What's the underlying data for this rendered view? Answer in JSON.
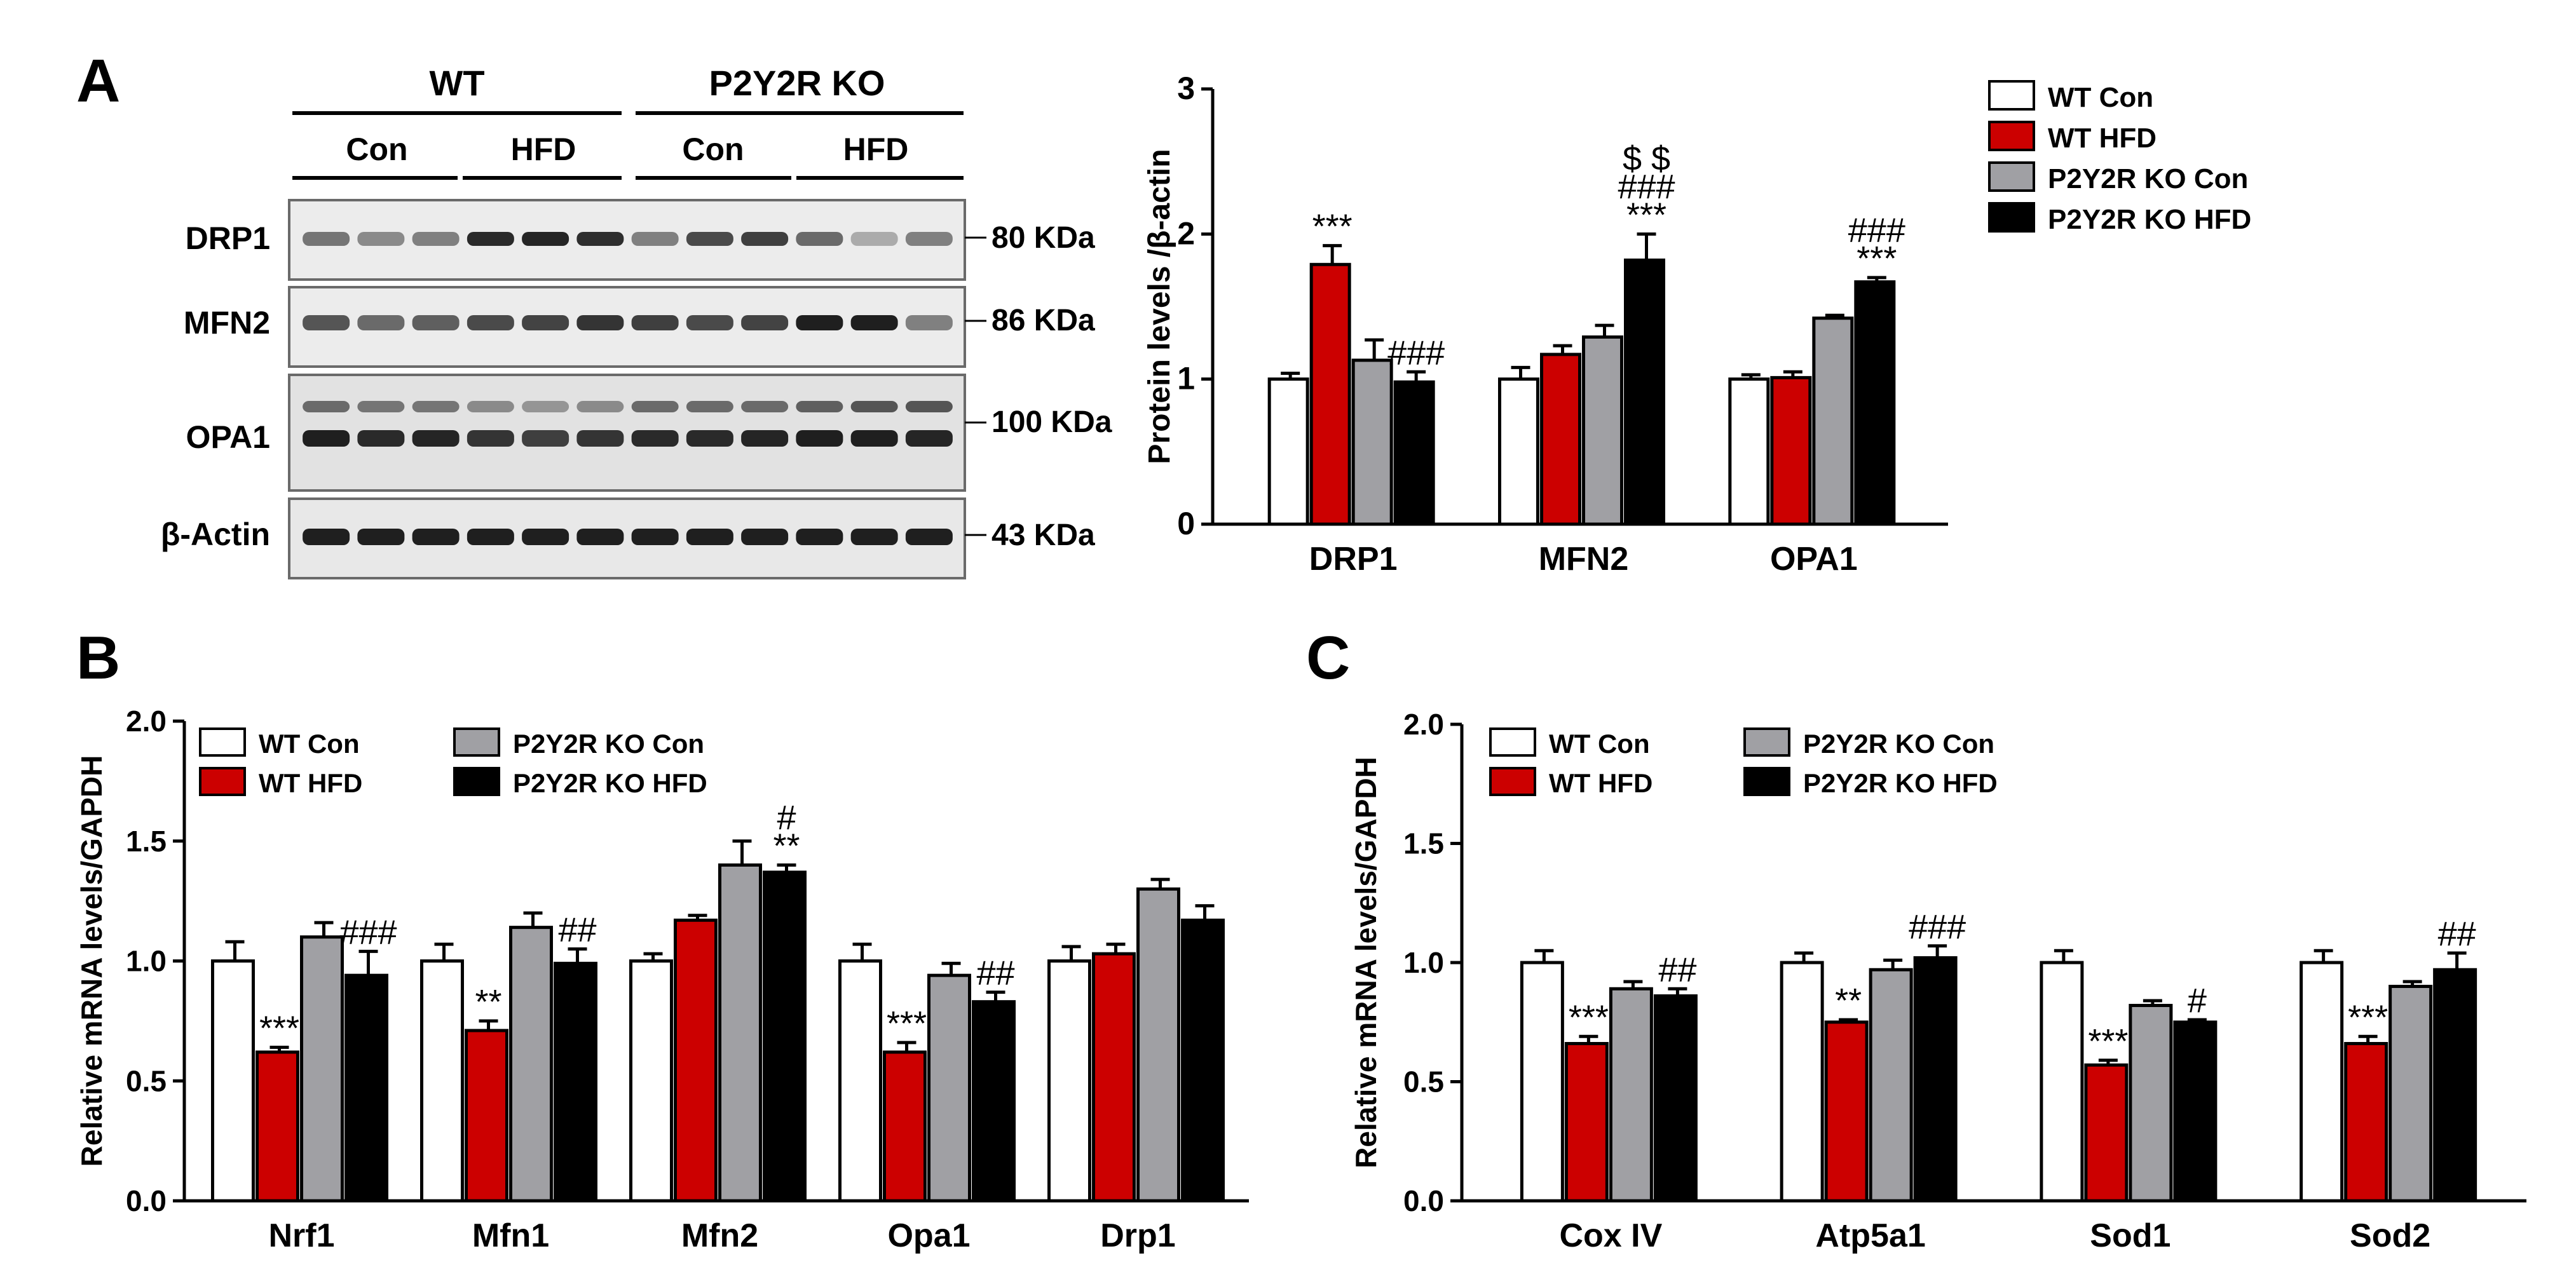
{
  "colors": {
    "wt_con": "#ffffff",
    "wt_hfd": "#cc0000",
    "ko_con": "#a0a0a4",
    "ko_hfd": "#000000",
    "axis": "#000000"
  },
  "panel_labels": {
    "a": "A",
    "b": "B",
    "c": "C"
  },
  "blot": {
    "group_labels": [
      "WT",
      "P2Y2R KO"
    ],
    "condition_labels": [
      "Con",
      "HFD",
      "Con",
      "HFD"
    ],
    "proteins": [
      {
        "name": "DRP1",
        "size": "80 KDa"
      },
      {
        "name": "MFN2",
        "size": "86 KDa"
      },
      {
        "name": "OPA1",
        "size": "100 KDa"
      },
      {
        "name": "β-Actin",
        "size": "43 KDa"
      }
    ]
  },
  "chart_data": [
    {
      "id": "A",
      "type": "bar",
      "title": "",
      "xlabel": "",
      "ylabel": "Protein levels /β-actin",
      "ylim": [
        0,
        3
      ],
      "yticks": [
        0,
        1,
        2,
        3
      ],
      "ytick_labels": [
        "0",
        "1",
        "2",
        "3"
      ],
      "categories": [
        "DRP1",
        "MFN2",
        "OPA1"
      ],
      "legend_position": "top-right",
      "legend_layout": "column",
      "series": [
        {
          "name": "WT Con",
          "values": [
            1.0,
            1.0,
            1.0
          ],
          "errors": [
            0.04,
            0.08,
            0.03
          ],
          "annotations": [
            "",
            "",
            ""
          ]
        },
        {
          "name": "WT HFD",
          "values": [
            1.79,
            1.17,
            1.01
          ],
          "errors": [
            0.13,
            0.06,
            0.04
          ],
          "annotations": [
            "***",
            "",
            ""
          ]
        },
        {
          "name": "P2Y2R KO Con",
          "values": [
            1.13,
            1.29,
            1.42
          ],
          "errors": [
            0.14,
            0.08,
            0.02
          ],
          "annotations": [
            "",
            "",
            ""
          ]
        },
        {
          "name": "P2Y2R KO HFD",
          "values": [
            0.98,
            1.82,
            1.67
          ],
          "errors": [
            0.07,
            0.18,
            0.03
          ],
          "annotations": [
            "###",
            "$ $\n###\n***",
            "###\n***"
          ]
        }
      ]
    },
    {
      "id": "B",
      "type": "bar",
      "title": "",
      "xlabel": "",
      "ylabel": "Relative mRNA levels/GAPDH",
      "ylim": [
        0,
        2.0
      ],
      "yticks": [
        0,
        0.5,
        1.0,
        1.5,
        2.0
      ],
      "ytick_labels": [
        "0.0",
        "0.5",
        "1.0",
        "1.5",
        "2.0"
      ],
      "categories": [
        "Nrf1",
        "Mfn1",
        "Mfn2",
        "Opa1",
        "Drp1"
      ],
      "legend_position": "top-left",
      "legend_layout": "two-column",
      "series": [
        {
          "name": "WT Con",
          "values": [
            1.0,
            1.0,
            1.0,
            1.0,
            1.0
          ],
          "errors": [
            0.08,
            0.07,
            0.03,
            0.07,
            0.06
          ],
          "annotations": [
            "",
            "",
            "",
            "",
            ""
          ]
        },
        {
          "name": "WT HFD",
          "values": [
            0.62,
            0.71,
            1.17,
            0.62,
            1.03
          ],
          "errors": [
            0.02,
            0.04,
            0.02,
            0.04,
            0.04
          ],
          "annotations": [
            "***",
            "**",
            "",
            "***",
            ""
          ]
        },
        {
          "name": "P2Y2R KO Con",
          "values": [
            1.1,
            1.14,
            1.4,
            0.94,
            1.3
          ],
          "errors": [
            0.06,
            0.06,
            0.1,
            0.05,
            0.04
          ],
          "annotations": [
            "",
            "",
            "",
            "",
            ""
          ]
        },
        {
          "name": "P2Y2R KO HFD",
          "values": [
            0.94,
            0.99,
            1.37,
            0.83,
            1.17
          ],
          "errors": [
            0.1,
            0.06,
            0.03,
            0.04,
            0.06
          ],
          "annotations": [
            "###",
            "##",
            "#\n**",
            "##",
            ""
          ]
        }
      ]
    },
    {
      "id": "C",
      "type": "bar",
      "title": "",
      "xlabel": "",
      "ylabel": "Relative mRNA levels/GAPDH",
      "ylim": [
        0,
        2.0
      ],
      "yticks": [
        0,
        0.5,
        1.0,
        1.5,
        2.0
      ],
      "ytick_labels": [
        "0.0",
        "0.5",
        "1.0",
        "1.5",
        "2.0"
      ],
      "categories": [
        "Cox IV",
        "Atp5a1",
        "Sod1",
        "Sod2"
      ],
      "legend_position": "top-left",
      "legend_layout": "two-column",
      "series": [
        {
          "name": "WT Con",
          "values": [
            1.0,
            1.0,
            1.0,
            1.0
          ],
          "errors": [
            0.05,
            0.04,
            0.05,
            0.05
          ],
          "annotations": [
            "",
            "",
            "",
            ""
          ]
        },
        {
          "name": "WT HFD",
          "values": [
            0.66,
            0.75,
            0.57,
            0.66
          ],
          "errors": [
            0.03,
            0.01,
            0.02,
            0.03
          ],
          "annotations": [
            "***",
            "**",
            "***",
            "***"
          ]
        },
        {
          "name": "P2Y2R KO Con",
          "values": [
            0.89,
            0.97,
            0.82,
            0.9
          ],
          "errors": [
            0.03,
            0.04,
            0.02,
            0.02
          ],
          "annotations": [
            "",
            "",
            "",
            ""
          ]
        },
        {
          "name": "P2Y2R KO HFD",
          "values": [
            0.86,
            1.02,
            0.75,
            0.97
          ],
          "errors": [
            0.03,
            0.05,
            0.01,
            0.07
          ],
          "annotations": [
            "##",
            "###",
            "#",
            "##"
          ]
        }
      ]
    }
  ]
}
